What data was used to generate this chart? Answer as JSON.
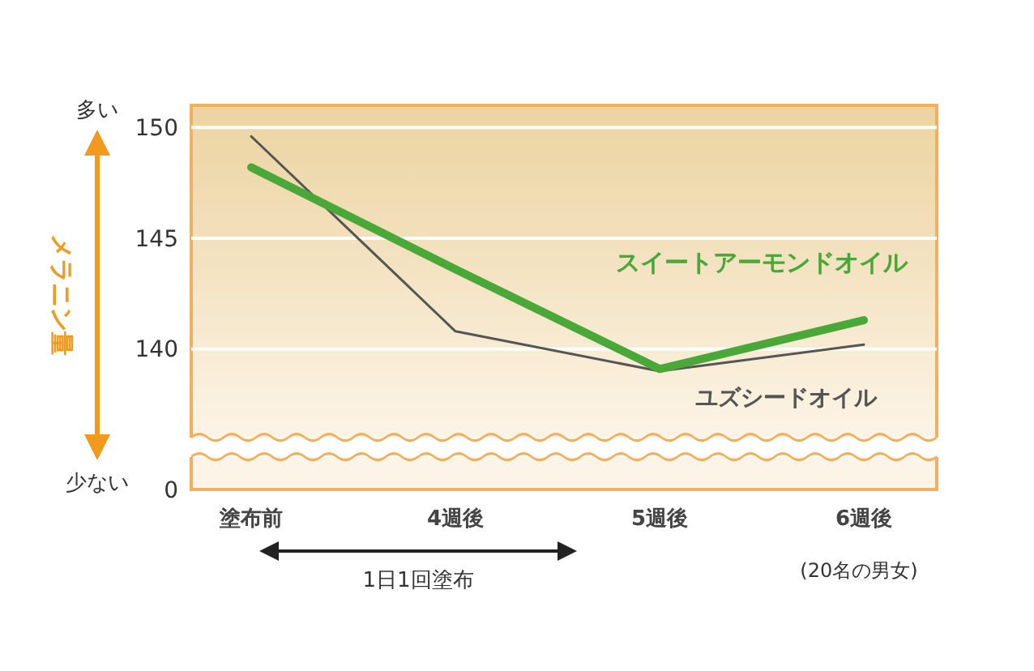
{
  "chart_data": {
    "type": "line",
    "ylabel": "メラニン量",
    "categories": [
      "塗布前",
      "4週後",
      "5週後",
      "6週後"
    ],
    "series": [
      {
        "name": "ユズシードオイル",
        "color": "#555555",
        "values": [
          149.6,
          140.8,
          139.0,
          140.2
        ]
      },
      {
        "name": "スイートアーモンドオイル",
        "color": "#4aa838",
        "values": [
          148.2,
          143.6,
          139.1,
          141.3
        ]
      }
    ],
    "ylim": [
      136,
      151
    ],
    "yticks": [
      140,
      145,
      150
    ],
    "grid": "y",
    "line_style": "solid",
    "annotations": [
      "多い",
      "少ない",
      "0",
      "1日1回塗布",
      "(20名の男女)"
    ]
  }
}
